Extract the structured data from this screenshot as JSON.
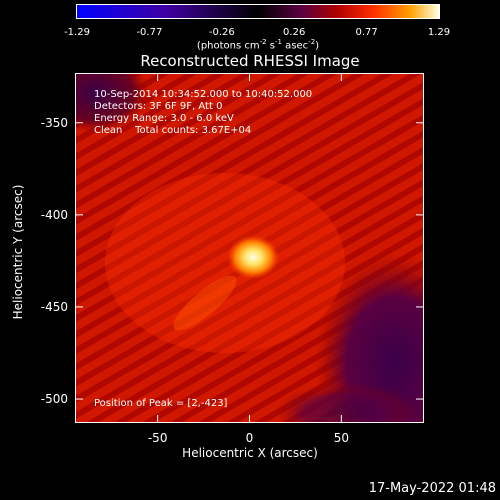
{
  "colorbar": {
    "ticks": [
      "-1.29",
      "-0.77",
      "-0.26",
      "0.26",
      "0.77",
      "1.29"
    ],
    "units_main": "(photons cm",
    "units_exp1": "-2",
    "units_s": " s",
    "units_exp2": "-1",
    "units_asec": " asec",
    "units_exp3": "-2",
    "units_close": ")"
  },
  "chart_data": {
    "type": "heatmap",
    "title": "Reconstructed RHESSI Image",
    "xlabel": "Heliocentric X (arcsec)",
    "ylabel": "Heliocentric Y (arcsec)",
    "xlim": [
      -95,
      95
    ],
    "ylim": [
      -513,
      -323
    ],
    "xticks": [
      "-50",
      "0",
      "50"
    ],
    "xtick_values": [
      -50,
      0,
      50
    ],
    "yticks": [
      "-350",
      "-400",
      "-450",
      "-500"
    ],
    "ytick_values": [
      -350,
      -400,
      -450,
      -500
    ],
    "color_range": [
      -1.29,
      1.29
    ],
    "peak": [
      2,
      -423
    ],
    "annotations": {
      "line1": "10-Sep-2014 10:34:52.000 to 10:40:52.000",
      "line2": "Detectors: 3F 6F 9F, Att 0",
      "line3": "Energy Range: 3.0 - 6.0 keV",
      "line4": "Clean    Total counts: 3.67E+04",
      "peak_text": "Position of Peak = [2,-423]"
    }
  },
  "footer": {
    "timestamp": "17-May-2022 01:48"
  }
}
